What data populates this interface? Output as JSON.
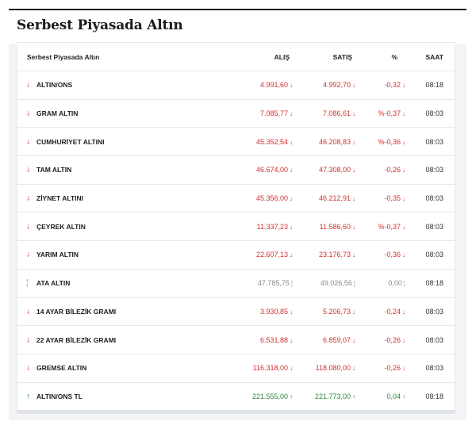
{
  "title": "Serbest Piyasada Altın",
  "headers": {
    "name": "Serbest Piyasada Altın",
    "alis": "ALIŞ",
    "satis": "SATIŞ",
    "pct": "%",
    "saat": "SAAT"
  },
  "colors": {
    "down": "#d32f2f",
    "up": "#2e8b3a",
    "flat": "#8a8a8a"
  },
  "rows": [
    {
      "name": "ALTIN/ONS",
      "alis": "4.991,60",
      "satis": "4.992,70",
      "pct": "-0,32",
      "saat": "08:18",
      "dir": "down"
    },
    {
      "name": "GRAM ALTIN",
      "alis": "7.085,77",
      "satis": "7.086,61",
      "pct": "%-0,37",
      "saat": "08:03",
      "dir": "down"
    },
    {
      "name": "CUMHURİYET ALTINI",
      "alis": "45.352,54",
      "satis": "46.208,83",
      "pct": "%-0,36",
      "saat": "08:03",
      "dir": "down"
    },
    {
      "name": "TAM ALTIN",
      "alis": "46.674,00",
      "satis": "47.308,00",
      "pct": "-0,26",
      "saat": "08:03",
      "dir": "down"
    },
    {
      "name": "ZİYNET ALTINI",
      "alis": "45.356,00",
      "satis": "46.212,91",
      "pct": "-0,35",
      "saat": "08:03",
      "dir": "down"
    },
    {
      "name": "ÇEYREK ALTIN",
      "alis": "11.337,23",
      "satis": "11.586,60",
      "pct": "%-0,37",
      "saat": "08:03",
      "dir": "down"
    },
    {
      "name": "YARIM ALTIN",
      "alis": "22.607,13",
      "satis": "23.176,73",
      "pct": "-0,36",
      "saat": "08:03",
      "dir": "down"
    },
    {
      "name": "ATA ALTIN",
      "alis": "47.785,75",
      "satis": "49.026,56",
      "pct": "0,00",
      "saat": "08:18",
      "dir": "flat"
    },
    {
      "name": "14 AYAR BİLEZİK GRAMI",
      "alis": "3.930,85",
      "satis": "5.206,73",
      "pct": "-0,24",
      "saat": "08:03",
      "dir": "down"
    },
    {
      "name": "22 AYAR BİLEZİK GRAMI",
      "alis": "6.531,88",
      "satis": "6.859,07",
      "pct": "-0,26",
      "saat": "08:03",
      "dir": "down"
    },
    {
      "name": "GREMSE ALTIN",
      "alis": "116.318,00",
      "satis": "118.080,00",
      "pct": "-0,26",
      "saat": "08:03",
      "dir": "down"
    },
    {
      "name": "ALTIN/ONS TL",
      "alis": "221.555,00",
      "satis": "221.773,00",
      "pct": "0,04",
      "saat": "08:18",
      "dir": "up"
    }
  ]
}
